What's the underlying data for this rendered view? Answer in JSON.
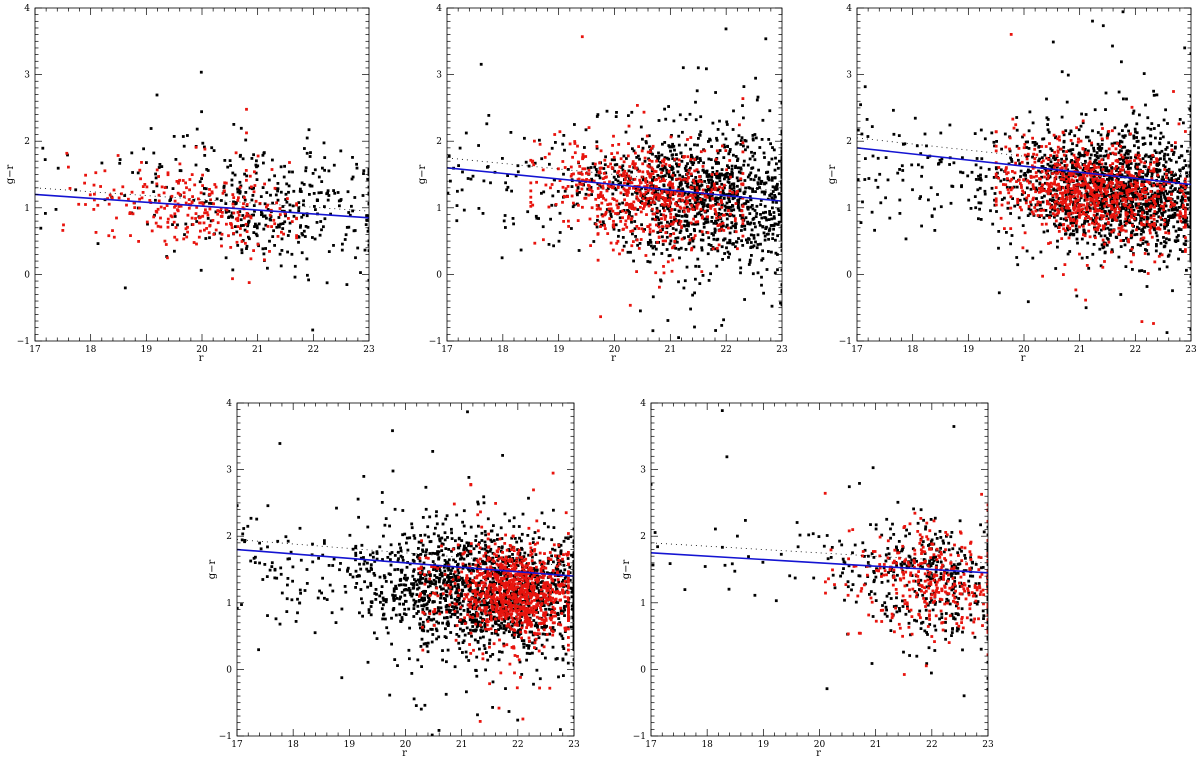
{
  "figure": {
    "panel_count": 5
  },
  "colors": {
    "black_points": "#000000",
    "red_points": "#e8140e",
    "fit_line": "#1414d2",
    "dotted_line": "#000000",
    "frame": "#000000"
  },
  "chart_data": [
    {
      "type": "scatter",
      "xlabel": "r",
      "ylabel": "g−r",
      "xlim": [
        17,
        23
      ],
      "ylim": [
        -1,
        4
      ],
      "x_ticks": [
        "17",
        "18",
        "19",
        "20",
        "21",
        "22",
        "23"
      ],
      "y_ticks": [
        "−1",
        "0",
        "1",
        "2",
        "3",
        "4"
      ],
      "fit_line": {
        "x": [
          17,
          23
        ],
        "y": [
          1.2,
          0.85
        ]
      },
      "dotted_line": {
        "x": [
          17,
          23
        ],
        "y": [
          1.3,
          0.95
        ]
      },
      "black_points": {
        "count": 420,
        "center_x": 21.3,
        "spread_x": 1.1,
        "center_y": 1.05,
        "spread_y": 0.45,
        "x_range": [
          17,
          23
        ]
      },
      "red_points": {
        "count": 280,
        "center_x": 20.0,
        "spread_x": 0.9,
        "center_y": 0.95,
        "spread_y": 0.3,
        "x_range": [
          17.5,
          21.7
        ]
      }
    },
    {
      "type": "scatter",
      "xlabel": "r",
      "ylabel": "g−r",
      "xlim": [
        17,
        23
      ],
      "ylim": [
        -1,
        4
      ],
      "x_ticks": [
        "17",
        "18",
        "19",
        "20",
        "21",
        "22",
        "23"
      ],
      "y_ticks": [
        "−1",
        "0",
        "1",
        "2",
        "3",
        "4"
      ],
      "fit_line": {
        "x": [
          17,
          23
        ],
        "y": [
          1.6,
          1.1
        ]
      },
      "dotted_line": {
        "x": [
          17,
          23
        ],
        "y": [
          1.75,
          1.25
        ]
      },
      "black_points": {
        "count": 1400,
        "center_x": 21.7,
        "spread_x": 1.0,
        "center_y": 1.15,
        "spread_y": 0.5,
        "x_range": [
          17,
          23
        ]
      },
      "red_points": {
        "count": 650,
        "center_x": 20.6,
        "spread_x": 0.9,
        "center_y": 1.2,
        "spread_y": 0.35,
        "x_range": [
          18.5,
          22.3
        ]
      }
    },
    {
      "type": "scatter",
      "xlabel": "r",
      "ylabel": "g−r",
      "xlim": [
        17,
        23
      ],
      "ylim": [
        -1,
        4
      ],
      "x_ticks": [
        "17",
        "18",
        "19",
        "20",
        "21",
        "22",
        "23"
      ],
      "y_ticks": [
        "−1",
        "0",
        "1",
        "2",
        "3",
        "4"
      ],
      "fit_line": {
        "x": [
          17,
          23
        ],
        "y": [
          1.9,
          1.35
        ]
      },
      "dotted_line": {
        "x": [
          17,
          23
        ],
        "y": [
          2.05,
          1.5
        ]
      },
      "black_points": {
        "count": 1800,
        "center_x": 21.8,
        "spread_x": 1.0,
        "center_y": 1.25,
        "spread_y": 0.45,
        "x_range": [
          17,
          23
        ]
      },
      "red_points": {
        "count": 900,
        "center_x": 21.3,
        "spread_x": 0.8,
        "center_y": 1.25,
        "spread_y": 0.35,
        "x_range": [
          19.5,
          22.9
        ]
      }
    },
    {
      "type": "scatter",
      "xlabel": "r",
      "ylabel": "g−r",
      "xlim": [
        17,
        23
      ],
      "ylim": [
        -1,
        4
      ],
      "x_ticks": [
        "17",
        "18",
        "19",
        "20",
        "21",
        "22",
        "23"
      ],
      "y_ticks": [
        "−1",
        "0",
        "1",
        "2",
        "3",
        "4"
      ],
      "fit_line": {
        "x": [
          17,
          23
        ],
        "y": [
          1.8,
          1.4
        ]
      },
      "dotted_line": {
        "x": [
          17,
          23
        ],
        "y": [
          1.95,
          1.55
        ]
      },
      "black_points": {
        "count": 1800,
        "center_x": 21.5,
        "spread_x": 1.1,
        "center_y": 1.2,
        "spread_y": 0.45,
        "x_range": [
          17,
          23
        ]
      },
      "red_points": {
        "count": 1000,
        "center_x": 22.0,
        "spread_x": 0.5,
        "center_y": 1.15,
        "spread_y": 0.35,
        "x_range": [
          20.2,
          22.9
        ]
      }
    },
    {
      "type": "scatter",
      "xlabel": "r",
      "ylabel": "g−r",
      "xlim": [
        17,
        23
      ],
      "ylim": [
        -1,
        4
      ],
      "x_ticks": [
        "17",
        "18",
        "19",
        "20",
        "21",
        "22",
        "23"
      ],
      "y_ticks": [
        "−1",
        "0",
        "1",
        "2",
        "3",
        "4"
      ],
      "fit_line": {
        "x": [
          17,
          23
        ],
        "y": [
          1.75,
          1.45
        ]
      },
      "dotted_line": {
        "x": [
          17,
          23
        ],
        "y": [
          1.9,
          1.6
        ]
      },
      "black_points": {
        "count": 450,
        "center_x": 22.0,
        "spread_x": 0.8,
        "center_y": 1.35,
        "spread_y": 0.45,
        "x_range": [
          17,
          23
        ]
      },
      "red_points": {
        "count": 350,
        "center_x": 22.1,
        "spread_x": 0.6,
        "center_y": 1.3,
        "spread_y": 0.4,
        "x_range": [
          20.1,
          23
        ]
      }
    }
  ]
}
